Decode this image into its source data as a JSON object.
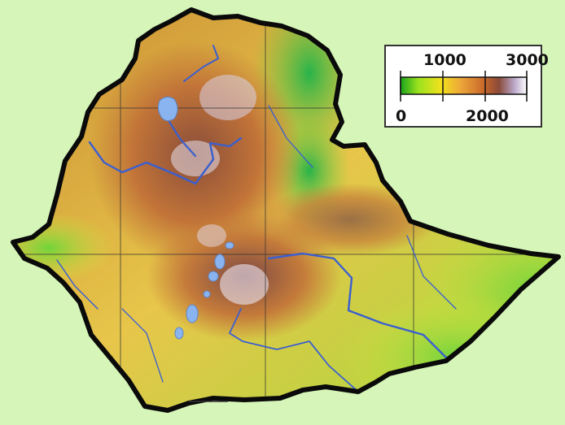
{
  "map": {
    "background_color": "#d6f5b8",
    "border_color": "#0a0a0a",
    "river_color": "#3a5fd0",
    "lake_color": "#8ab4f0",
    "grid_color": "#333333"
  },
  "legend": {
    "ramp_colors": [
      "#1aa31a",
      "#9be21f",
      "#f3e11d",
      "#eca53a",
      "#c9682a",
      "#8a4a3a",
      "#b9a6c8",
      "#ffffff"
    ],
    "ticks": [
      {
        "value": 0,
        "label": "0"
      },
      {
        "value": 1000,
        "label": "1000"
      },
      {
        "value": 2000,
        "label": "2000"
      },
      {
        "value": 3000,
        "label": "3000"
      }
    ]
  }
}
